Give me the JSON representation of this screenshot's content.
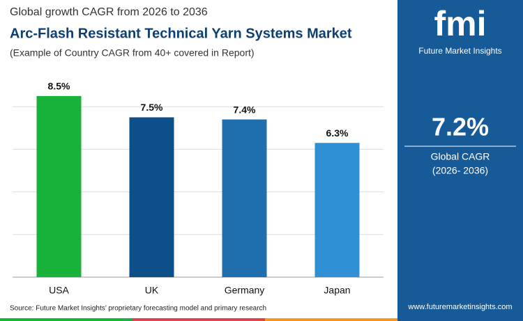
{
  "chart_data": {
    "type": "bar",
    "pretitle": "Global growth CAGR from 2026 to 2036",
    "title": "Arc-Flash Resistant Technical Yarn Systems Market",
    "subtitle": "(Example of Country CAGR from 40+ covered in Report)",
    "categories": [
      "USA",
      "UK",
      "Germany",
      "Japan"
    ],
    "values": [
      8.5,
      7.5,
      7.4,
      6.3
    ],
    "value_labels": [
      "8.5%",
      "7.5%",
      "7.4%",
      "6.3%"
    ],
    "colors": [
      "#19b23b",
      "#0d5089",
      "#1f6fae",
      "#3090d6"
    ],
    "ylim": [
      0,
      10
    ],
    "yticks": [
      0,
      2,
      4,
      6,
      8
    ],
    "grid": true,
    "source": "Source: Future Market Insights’ proprietary forecasting model and primary research"
  },
  "panel": {
    "logo": "fmi",
    "brand": "Future Market Insights",
    "stat": "7.2%",
    "stat_label": "Global CAGR",
    "stat_period": "(2026- 2036)",
    "url": "www.futuremarketinsights.com"
  }
}
